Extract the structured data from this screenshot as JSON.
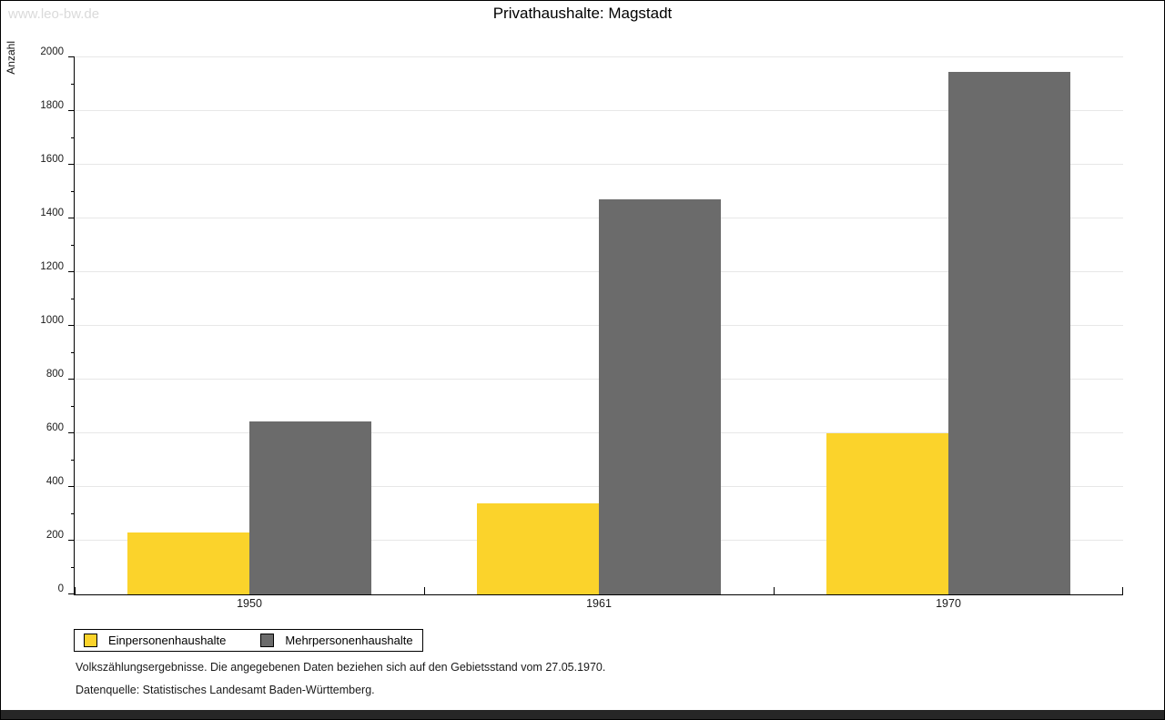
{
  "watermark": "www.leo-bw.de",
  "title": "Privathaushalte: Magstadt",
  "chart_data": {
    "type": "bar",
    "title": "Privathaushalte: Magstadt",
    "categories": [
      "1950",
      "1961",
      "1970"
    ],
    "series": [
      {
        "name": "Einpersonenhaushalte",
        "color": "#fbd32b",
        "values": [
          230,
          340,
          600
        ]
      },
      {
        "name": "Mehrpersonenhaushalte",
        "color": "#6b6b6b",
        "values": [
          645,
          1470,
          1945
        ]
      }
    ],
    "xlabel": "",
    "ylabel": "Anzahl",
    "ylim": [
      0,
      2000
    ],
    "ytick_major": 200,
    "ytick_minor": 100,
    "grid": true,
    "legend_position": "bottom-left"
  },
  "footnotes": [
    "Volkszählungsergebnisse. Die angegebenen Daten beziehen sich auf den Gebietsstand vom 27.05.1970.",
    "Datenquelle: Statistisches Landesamt Baden-Württemberg."
  ],
  "colors": {
    "series_yellow": "#fbd32b",
    "series_gray": "#6b6b6b",
    "gridline": "#e7e7e7",
    "watermark": "#dadada",
    "bottom_bar": "#262626"
  }
}
